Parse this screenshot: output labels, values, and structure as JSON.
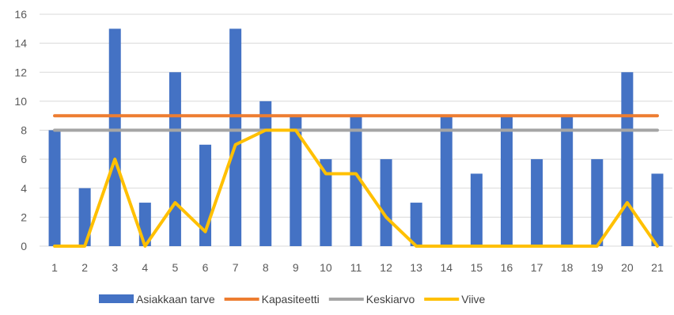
{
  "chart_data": {
    "type": "bar",
    "categories": [
      "1",
      "2",
      "3",
      "4",
      "5",
      "6",
      "7",
      "8",
      "9",
      "10",
      "11",
      "12",
      "13",
      "14",
      "15",
      "16",
      "17",
      "18",
      "19",
      "20",
      "21"
    ],
    "ylim": [
      0,
      16
    ],
    "yticks": [
      0,
      2,
      4,
      6,
      8,
      10,
      12,
      14,
      16
    ],
    "grid": "horizontal",
    "legend_position": "bottom",
    "series": [
      {
        "name": "Asiakkaan tarve",
        "kind": "bar",
        "color": "#4472C4",
        "values": [
          8,
          4,
          15,
          3,
          12,
          7,
          15,
          10,
          9,
          6,
          9,
          6,
          3,
          9,
          5,
          9,
          6,
          9,
          6,
          12,
          5
        ]
      },
      {
        "name": "Kapasiteetti",
        "kind": "line",
        "color": "#ED7D31",
        "values": [
          9,
          9,
          9,
          9,
          9,
          9,
          9,
          9,
          9,
          9,
          9,
          9,
          9,
          9,
          9,
          9,
          9,
          9,
          9,
          9,
          9
        ]
      },
      {
        "name": "Keskiarvo",
        "kind": "line",
        "color": "#A5A5A5",
        "values": [
          8,
          8,
          8,
          8,
          8,
          8,
          8,
          8,
          8,
          8,
          8,
          8,
          8,
          8,
          8,
          8,
          8,
          8,
          8,
          8,
          8
        ]
      },
      {
        "name": "Viive",
        "kind": "line",
        "color": "#FFC000",
        "values": [
          0,
          0,
          6,
          0,
          3,
          1,
          7,
          8,
          8,
          5,
          5,
          2,
          0,
          0,
          0,
          0,
          0,
          0,
          0,
          3,
          0
        ]
      }
    ]
  }
}
